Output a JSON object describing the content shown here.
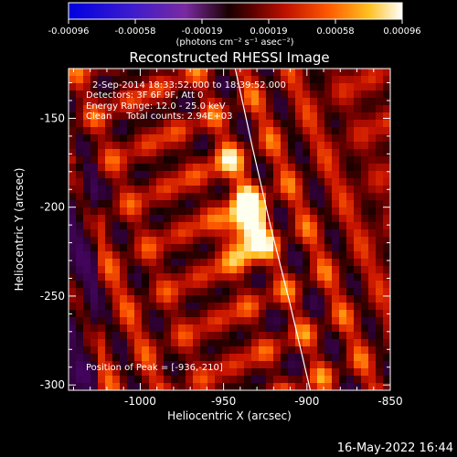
{
  "colorbar": {
    "ticks": [
      "-0.00096",
      "-0.00058",
      "-0.00019",
      "0.00019",
      "0.00058",
      "0.00096"
    ],
    "units": "(photons cm⁻² s⁻¹ asec⁻²)",
    "colormap": "black-red-orange-yellow-white (negative: blue-purple)"
  },
  "chart_data": {
    "type": "heatmap",
    "title": "Reconstructed RHESSI Image",
    "xlabel": "Heliocentric X (arcsec)",
    "ylabel": "Heliocentric Y (arcsec)",
    "xlim": [
      -1043,
      -850
    ],
    "ylim": [
      -303,
      -122
    ],
    "xticks": [
      "-1000",
      "-950",
      "-900",
      "-850"
    ],
    "yticks": [
      "-150",
      "-200",
      "-250",
      "-300"
    ],
    "xtick_values": [
      -1000,
      -950,
      -900,
      -850
    ],
    "ytick_values": [
      -150,
      -200,
      -250,
      -300
    ],
    "zlim": [
      -0.00096,
      0.00096
    ],
    "peak": [
      -936,
      -210
    ],
    "limb_curve": [
      [
        -943,
        -122
      ],
      [
        -933,
        -165
      ],
      [
        -922,
        -210
      ],
      [
        -910,
        -255
      ],
      [
        -898,
        -303
      ]
    ],
    "annotations": {
      "time_range": "2-Sep-2014 18:33:52.000 to 18:39:52.000",
      "detectors": "Detectors: 3F 6F 9F, Att 0",
      "energy": "Energy Range: 12.0 - 25.0 keV",
      "clean": "Clean     Total counts: 2.94E+03",
      "peak_label": "Position of Peak = [-936,-210]"
    }
  },
  "footer": {
    "timestamp": "16-May-2022 16:44"
  }
}
